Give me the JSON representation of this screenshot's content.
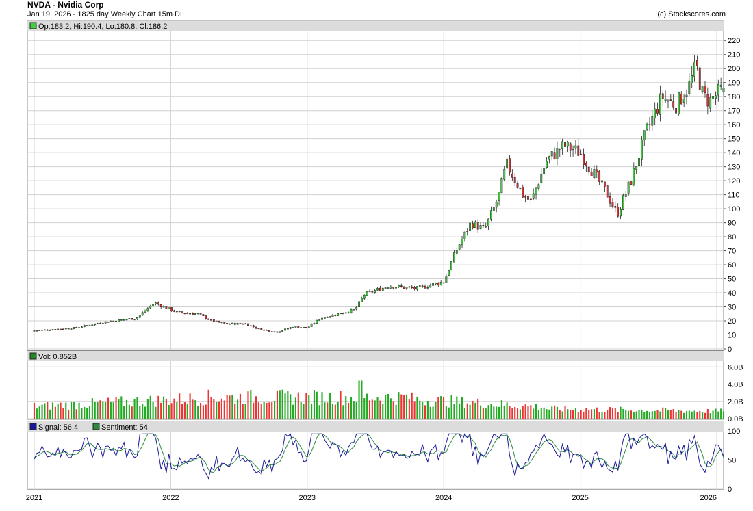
{
  "header": {
    "title": "NVDA - Nvidia Corp",
    "subtitle": "Jan 19, 2026 - 1825 day  Weekly Chart 15m DL",
    "copyright": "(c) Stockscores.com"
  },
  "colors": {
    "up": "#44cc44",
    "down": "#dd3333",
    "signal": "#1a1a99",
    "sentiment": "#2b8a3e",
    "legend_bg": "#dcdcdc",
    "grid": "#d0d0d0"
  },
  "price_panel": {
    "legend": "Op:183.2, Hi:190.4, Lo:180.8, Cl:186.2",
    "ylim": [
      0,
      225
    ],
    "ticks": [
      "0",
      "10",
      "20",
      "30",
      "40",
      "50",
      "60",
      "70",
      "80",
      "90",
      "100",
      "110",
      "120",
      "130",
      "140",
      "150",
      "160",
      "170",
      "180",
      "190",
      "200",
      "210",
      "220"
    ]
  },
  "volume_panel": {
    "legend": "Vol: 0.852B",
    "unit": "B",
    "ylim": [
      0,
      6.5
    ],
    "ticks": [
      "0.0B",
      "2.0B",
      "4.0B",
      "6.0B"
    ]
  },
  "indicator_panel": {
    "signal_legend": "Signal: 56.4",
    "sentiment_legend": "Sentiment: 54",
    "ylim": [
      0,
      100
    ],
    "ticks": [
      "0",
      "50",
      "100"
    ]
  },
  "x_axis": {
    "labels": [
      "2021",
      "2022",
      "2023",
      "2024",
      "2025",
      "2026"
    ]
  },
  "chart_data": {
    "type": "candlestick",
    "frequency": "weekly",
    "price_anchors": [
      {
        "x": 2021.0,
        "close": 13
      },
      {
        "x": 2021.3,
        "close": 15
      },
      {
        "x": 2021.5,
        "close": 19
      },
      {
        "x": 2021.75,
        "close": 22
      },
      {
        "x": 2021.88,
        "close": 33
      },
      {
        "x": 2021.95,
        "close": 30
      },
      {
        "x": 2022.05,
        "close": 26
      },
      {
        "x": 2022.2,
        "close": 25
      },
      {
        "x": 2022.3,
        "close": 20
      },
      {
        "x": 2022.4,
        "close": 18
      },
      {
        "x": 2022.55,
        "close": 18
      },
      {
        "x": 2022.65,
        "close": 14
      },
      {
        "x": 2022.78,
        "close": 12
      },
      {
        "x": 2022.9,
        "close": 16
      },
      {
        "x": 2023.0,
        "close": 15
      },
      {
        "x": 2023.1,
        "close": 22
      },
      {
        "x": 2023.35,
        "close": 28
      },
      {
        "x": 2023.42,
        "close": 39
      },
      {
        "x": 2023.6,
        "close": 45
      },
      {
        "x": 2023.8,
        "close": 43
      },
      {
        "x": 2024.0,
        "close": 48
      },
      {
        "x": 2024.1,
        "close": 72
      },
      {
        "x": 2024.2,
        "close": 90
      },
      {
        "x": 2024.3,
        "close": 85
      },
      {
        "x": 2024.4,
        "close": 108
      },
      {
        "x": 2024.46,
        "close": 132
      },
      {
        "x": 2024.58,
        "close": 110
      },
      {
        "x": 2024.64,
        "close": 105
      },
      {
        "x": 2024.75,
        "close": 134
      },
      {
        "x": 2024.88,
        "close": 145
      },
      {
        "x": 2025.0,
        "close": 140
      },
      {
        "x": 2025.1,
        "close": 125
      },
      {
        "x": 2025.2,
        "close": 110
      },
      {
        "x": 2025.27,
        "close": 96
      },
      {
        "x": 2025.38,
        "close": 122
      },
      {
        "x": 2025.48,
        "close": 154
      },
      {
        "x": 2025.6,
        "close": 180
      },
      {
        "x": 2025.7,
        "close": 174
      },
      {
        "x": 2025.8,
        "close": 188
      },
      {
        "x": 2025.85,
        "close": 202
      },
      {
        "x": 2025.9,
        "close": 180
      },
      {
        "x": 2025.95,
        "close": 177
      },
      {
        "x": 2026.05,
        "close": 186.2
      }
    ],
    "last_bar": {
      "open": 183.2,
      "high": 190.4,
      "low": 180.8,
      "close": 186.2,
      "volume": 0.852,
      "signal": 56.4,
      "sentiment": 54
    },
    "x_range": [
      2020.95,
      2026.05
    ]
  }
}
